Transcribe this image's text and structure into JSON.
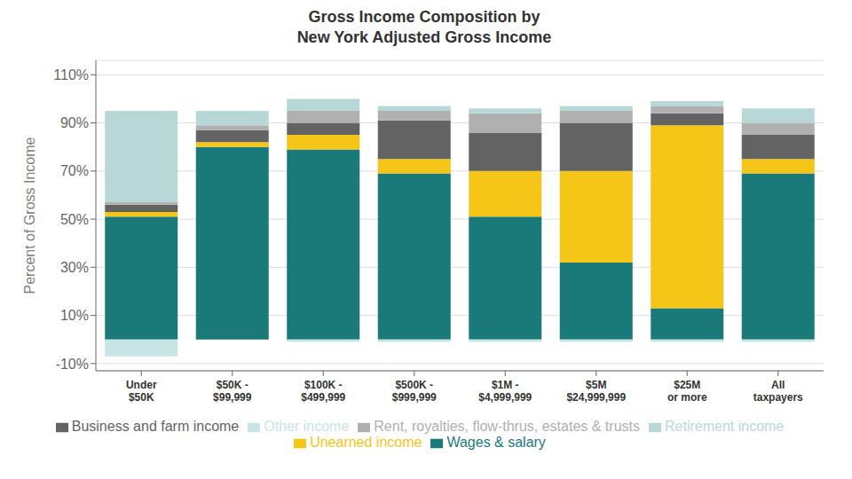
{
  "chart_data": {
    "type": "bar",
    "title": "Gross Income Composition by\nNew York Adjusted Gross Income",
    "categories": [
      "Under\n$50K",
      "$50K -\n$99,999",
      "$100K -\n$499,999",
      "$500K -\n$999,999",
      "$1M -\n$4,999,999",
      "$5M\n$24,999,999",
      "$25M\nor more",
      "All\ntaxpayers"
    ],
    "series": [
      {
        "name": "Wages & salary",
        "color": "#1a7a7a",
        "values": [
          51,
          80,
          79,
          69,
          51,
          32,
          13,
          69
        ]
      },
      {
        "name": "Unearned income",
        "color": "#f5c518",
        "values": [
          2,
          2,
          6,
          6,
          19,
          38,
          76,
          6
        ]
      },
      {
        "name": "Business and farm income",
        "color": "#636363",
        "values": [
          3,
          5,
          5,
          16,
          16,
          20,
          5,
          10
        ]
      },
      {
        "name": "Rent, royalties, flow-thrus, estates & trusts",
        "color": "#b0b0b0",
        "values": [
          1,
          2,
          5,
          4,
          8,
          5,
          3,
          5
        ]
      },
      {
        "name": "Retirement income",
        "color": "#b8d8d8",
        "values": [
          38,
          6,
          5,
          2,
          2,
          2,
          2,
          6
        ]
      },
      {
        "name": "Other income",
        "color": "#c8e4e4",
        "values": [
          -7,
          0,
          -1,
          -1,
          -1,
          -1,
          -1,
          -1
        ]
      }
    ],
    "ylabel": "Percent of Gross Income",
    "ylim": [
      -13,
      116
    ],
    "yticks": [
      {
        "value": -10,
        "label": "-10%"
      },
      {
        "value": 10,
        "label": "10%"
      },
      {
        "value": 30,
        "label": "30%"
      },
      {
        "value": 50,
        "label": "50%"
      },
      {
        "value": 70,
        "label": "70%"
      },
      {
        "value": 90,
        "label": "90%"
      },
      {
        "value": 110,
        "label": "110%"
      }
    ],
    "grid": true,
    "stacked": true,
    "legend": "bottom"
  }
}
